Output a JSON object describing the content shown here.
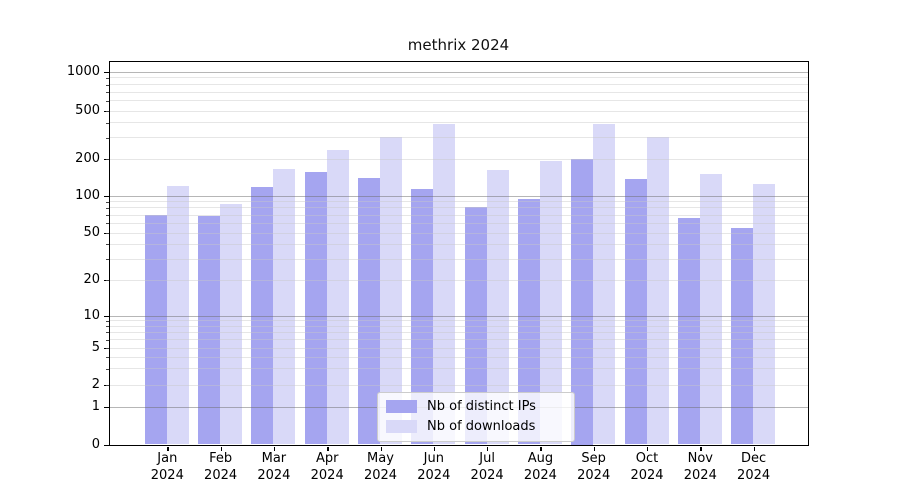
{
  "chart_data": {
    "type": "bar",
    "title": "methrix 2024",
    "categories": [
      "Jan",
      "Feb",
      "Mar",
      "Apr",
      "May",
      "Jun",
      "Jul",
      "Aug",
      "Sep",
      "Oct",
      "Nov",
      "Dec"
    ],
    "x_year_label": "2024",
    "series": [
      {
        "name": "Nb of distinct IPs",
        "color": "#a5a5f0",
        "values": [
          70,
          68,
          118,
          155,
          140,
          112,
          80,
          94,
          200,
          135,
          66,
          54
        ]
      },
      {
        "name": "Nb of downloads",
        "color": "#d9d9f8",
        "values": [
          120,
          85,
          165,
          237,
          300,
          390,
          160,
          190,
          385,
          300,
          150,
          125
        ]
      }
    ],
    "yscale": "symlog",
    "ytick_values": [
      0,
      1,
      2,
      5,
      10,
      20,
      50,
      100,
      200,
      500,
      1000
    ],
    "ytick_labels": [
      "0",
      "1",
      "2",
      "5",
      "10",
      "20",
      "50",
      "100",
      "200",
      "500",
      "1000"
    ],
    "ylim": [
      0,
      1250
    ],
    "grid": true,
    "legend_position": "lower center"
  },
  "colors": {
    "grid_major": "#b0b0b0",
    "grid_minor": "#dedede",
    "axis": "#000000",
    "background": "#ffffff"
  }
}
